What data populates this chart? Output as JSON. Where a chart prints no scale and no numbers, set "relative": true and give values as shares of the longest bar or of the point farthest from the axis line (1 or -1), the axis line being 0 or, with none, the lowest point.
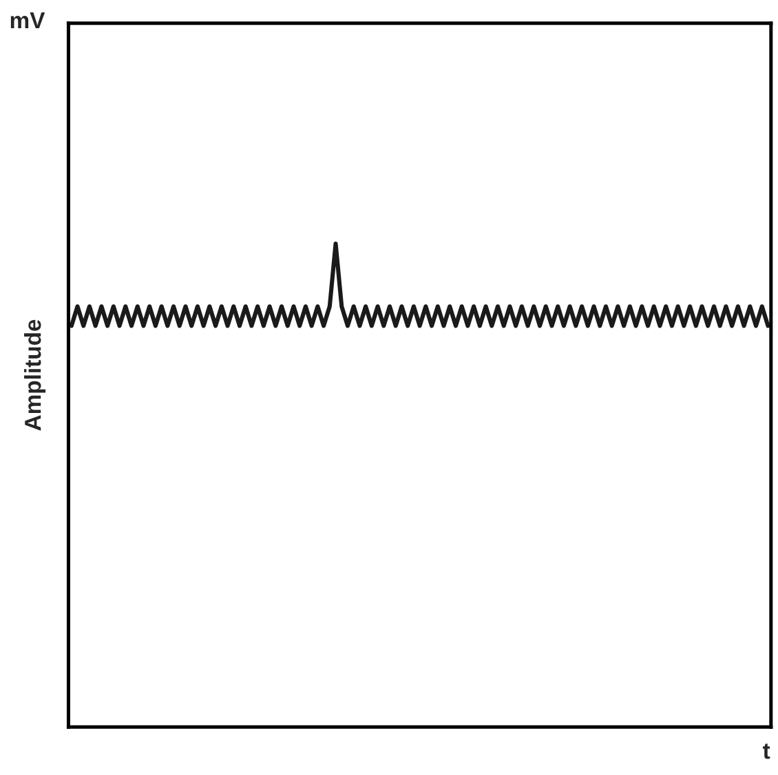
{
  "chart_data": {
    "type": "line",
    "relative": true,
    "xlabel": "t",
    "ylabel": "Amplitude",
    "annotations": [
      "mV"
    ],
    "categories": [
      null,
      null,
      null,
      null,
      null,
      null,
      null,
      null,
      null,
      null,
      null,
      null,
      null,
      null,
      null,
      null,
      null,
      null,
      null,
      null,
      null,
      null,
      null,
      null,
      null,
      null,
      null,
      null,
      null,
      null,
      null,
      null,
      null,
      null,
      null,
      null,
      null,
      null,
      null,
      null,
      null,
      null,
      null,
      null,
      null,
      null,
      null,
      null,
      null,
      null,
      null,
      null,
      null,
      null,
      null,
      null,
      null,
      null,
      null,
      null,
      null,
      null,
      null,
      null,
      null,
      null,
      null,
      null,
      null,
      null,
      null,
      null,
      null,
      null,
      null,
      null,
      null,
      null,
      null,
      null,
      null,
      null,
      null,
      null,
      null,
      null,
      null,
      null,
      null,
      null,
      null,
      null,
      null,
      null,
      null,
      null,
      null,
      null,
      null,
      null,
      null,
      null,
      null,
      null,
      null,
      null,
      null,
      null,
      null,
      null,
      null,
      null,
      null,
      null,
      null,
      null,
      null
    ],
    "series": [
      {
        "color": "#1a1a1a",
        "values": [
          0.83,
          0.87,
          0.83,
          0.87,
          0.83,
          0.87,
          0.83,
          0.87,
          0.83,
          0.87,
          0.83,
          0.87,
          0.83,
          0.87,
          0.83,
          0.87,
          0.83,
          0.87,
          0.83,
          0.87,
          0.83,
          0.87,
          0.83,
          0.87,
          0.83,
          0.87,
          0.83,
          0.87,
          0.83,
          0.87,
          0.83,
          0.87,
          0.83,
          0.87,
          0.83,
          0.87,
          0.83,
          0.87,
          0.83,
          0.87,
          0.83,
          0.87,
          0.83,
          0.87,
          1.0,
          0.87,
          0.83,
          0.87,
          0.83,
          0.87,
          0.83,
          0.87,
          0.83,
          0.87,
          0.83,
          0.87,
          0.83,
          0.87,
          0.83,
          0.87,
          0.83,
          0.87,
          0.83,
          0.87,
          0.83,
          0.87,
          0.83,
          0.87,
          0.83,
          0.87,
          0.83,
          0.87,
          0.83,
          0.87,
          0.83,
          0.87,
          0.83,
          0.87,
          0.83,
          0.87,
          0.83,
          0.87,
          0.83,
          0.87,
          0.83,
          0.87,
          0.83,
          0.87,
          0.83,
          0.87,
          0.83,
          0.87,
          0.83,
          0.87,
          0.83,
          0.87,
          0.83,
          0.87,
          0.83,
          0.87,
          0.83,
          0.87,
          0.83,
          0.87,
          0.83,
          0.87,
          0.83,
          0.87,
          0.83,
          0.87,
          0.83,
          0.87,
          0.83,
          0.87,
          0.83,
          0.87,
          0.83
        ]
      }
    ]
  }
}
